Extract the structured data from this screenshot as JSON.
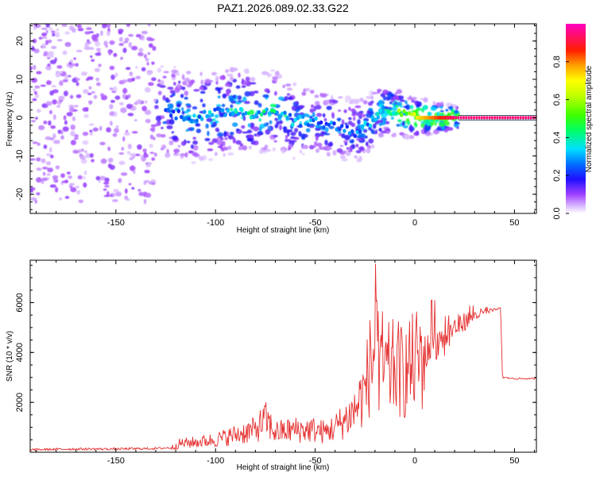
{
  "chart_data": [
    {
      "type": "heatmap",
      "title": "PAZ1.2026.089.02.33.G22",
      "xlabel": "Height of straight line (km)",
      "ylabel": "Frequency (Hz)",
      "xlim": [
        -193,
        61
      ],
      "ylim": [
        -25,
        24.5
      ],
      "x_ticks": [
        -150,
        -100,
        -50,
        0,
        50
      ],
      "y_ticks": [
        -20,
        -10,
        0,
        10,
        20
      ],
      "x_tick_labels": [
        "-150",
        "-100",
        "-50",
        "0",
        "50"
      ],
      "y_tick_labels": [
        "-20",
        "-10",
        "0",
        "10",
        "20"
      ],
      "colorbar": {
        "label": "Normalized spectral amplitude",
        "range": [
          0,
          1
        ],
        "ticks": [
          0.0,
          0.2,
          0.4,
          0.6,
          0.8
        ],
        "tick_labels": [
          "0.0",
          "0.2",
          "0.4",
          "0.6",
          "0.8"
        ]
      },
      "ridge": [
        {
          "x": -130,
          "f": 2,
          "amp": 0.2
        },
        {
          "x": -120,
          "f": 1,
          "amp": 0.3
        },
        {
          "x": -110,
          "f": 0,
          "amp": 0.35
        },
        {
          "x": -100,
          "f": 1,
          "amp": 0.35
        },
        {
          "x": -90,
          "f": 2,
          "amp": 0.4
        },
        {
          "x": -80,
          "f": 1,
          "amp": 0.4
        },
        {
          "x": -70,
          "f": 2,
          "amp": 0.45
        },
        {
          "x": -60,
          "f": -1,
          "amp": 0.35
        },
        {
          "x": -50,
          "f": -1,
          "amp": 0.3
        },
        {
          "x": -40,
          "f": -2,
          "amp": 0.3
        },
        {
          "x": -30,
          "f": -4,
          "amp": 0.3
        },
        {
          "x": -15,
          "f": 2,
          "amp": 0.45
        },
        {
          "x": 0,
          "f": 0,
          "amp": 0.7
        },
        {
          "x": 20,
          "f": 0,
          "amp": 0.95
        },
        {
          "x": 61,
          "f": 0,
          "amp": 0.95
        }
      ]
    },
    {
      "type": "line",
      "title": "",
      "xlabel": "Height of straight line (km)",
      "ylabel": "SNR (10 * v/v)",
      "xlim": [
        -193,
        61
      ],
      "ylim": [
        0,
        7700
      ],
      "x_ticks": [
        -150,
        -100,
        -50,
        0,
        50
      ],
      "y_ticks": [
        2000,
        4000,
        6000
      ],
      "x_tick_labels": [
        "-150",
        "-100",
        "-50",
        "0",
        "50"
      ],
      "y_tick_labels": [
        "2000",
        "4000",
        "6000"
      ],
      "color": "#e53030",
      "series": [
        {
          "name": "SNR",
          "x": [
            -193,
            -180,
            -170,
            -160,
            -150,
            -140,
            -130,
            -122,
            -118,
            -110,
            -100,
            -90,
            -80,
            -75,
            -70,
            -60,
            -50,
            -45,
            -40,
            -35,
            -30,
            -25,
            -22,
            -20,
            -18,
            -15,
            -10,
            -5,
            0,
            10,
            20,
            30,
            40,
            43,
            44,
            50,
            61
          ],
          "y": [
            100,
            120,
            130,
            130,
            130,
            140,
            150,
            180,
            350,
            400,
            500,
            700,
            900,
            1300,
            800,
            900,
            900,
            800,
            1000,
            1300,
            1700,
            2500,
            3700,
            4200,
            3500,
            3200,
            3400,
            3200,
            3600,
            4300,
            5000,
            5500,
            5700,
            5800,
            3000,
            2950,
            2950
          ]
        }
      ]
    }
  ]
}
